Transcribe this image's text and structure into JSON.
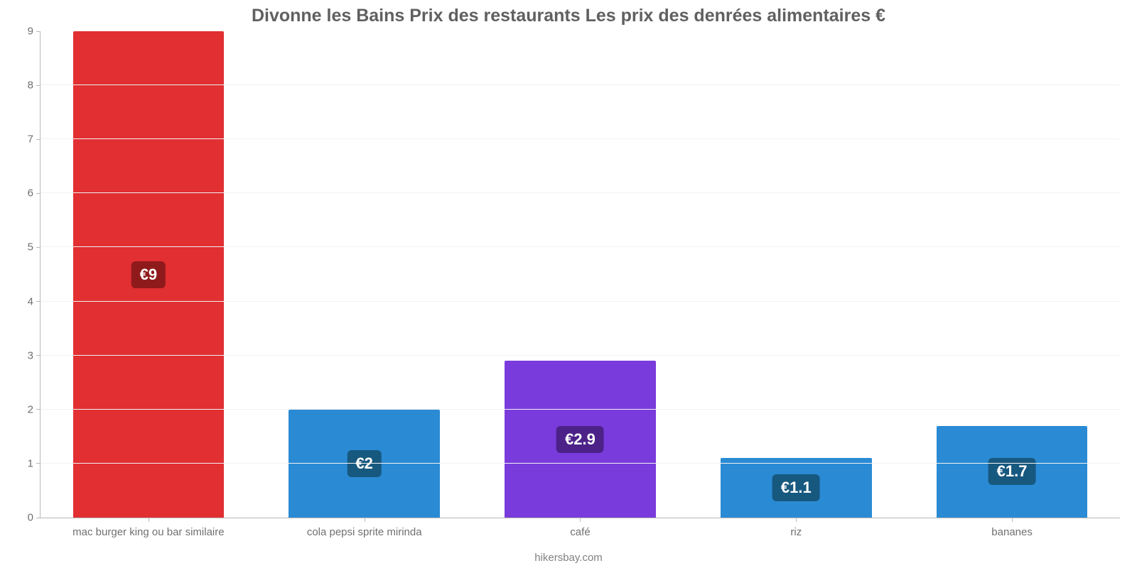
{
  "chart": {
    "type": "bar",
    "title": "Divonne les Bains Prix des restaurants Les prix des denrées alimentaires €",
    "title_fontsize": 25,
    "title_color": "#606060",
    "source": "hikersbay.com",
    "background_color": "#ffffff",
    "grid_color": "#f2f2f2",
    "axis_color": "#b8b8b8",
    "tick_label_color": "#707070",
    "tick_fontsize": 15,
    "ylim": [
      0,
      9
    ],
    "ytick_step": 1,
    "bar_width_pct": 70,
    "value_prefix": "€",
    "badge_fontsize": 22,
    "categories": [
      "mac burger king ou bar similaire",
      "cola pepsi sprite mirinda",
      "café",
      "riz",
      "bananes"
    ],
    "values": [
      9,
      2,
      2.9,
      1.1,
      1.7
    ],
    "value_labels": [
      "€9",
      "€2",
      "€2.9",
      "€1.1",
      "€1.7"
    ],
    "bar_colors": [
      "#e12f32",
      "#2a8ad4",
      "#7a3bdc",
      "#2a8ad4",
      "#2a8ad4"
    ],
    "badge_bg_colors": [
      "#8f1a1c",
      "#17587f",
      "#4c2289",
      "#17587f",
      "#17587f"
    ]
  }
}
